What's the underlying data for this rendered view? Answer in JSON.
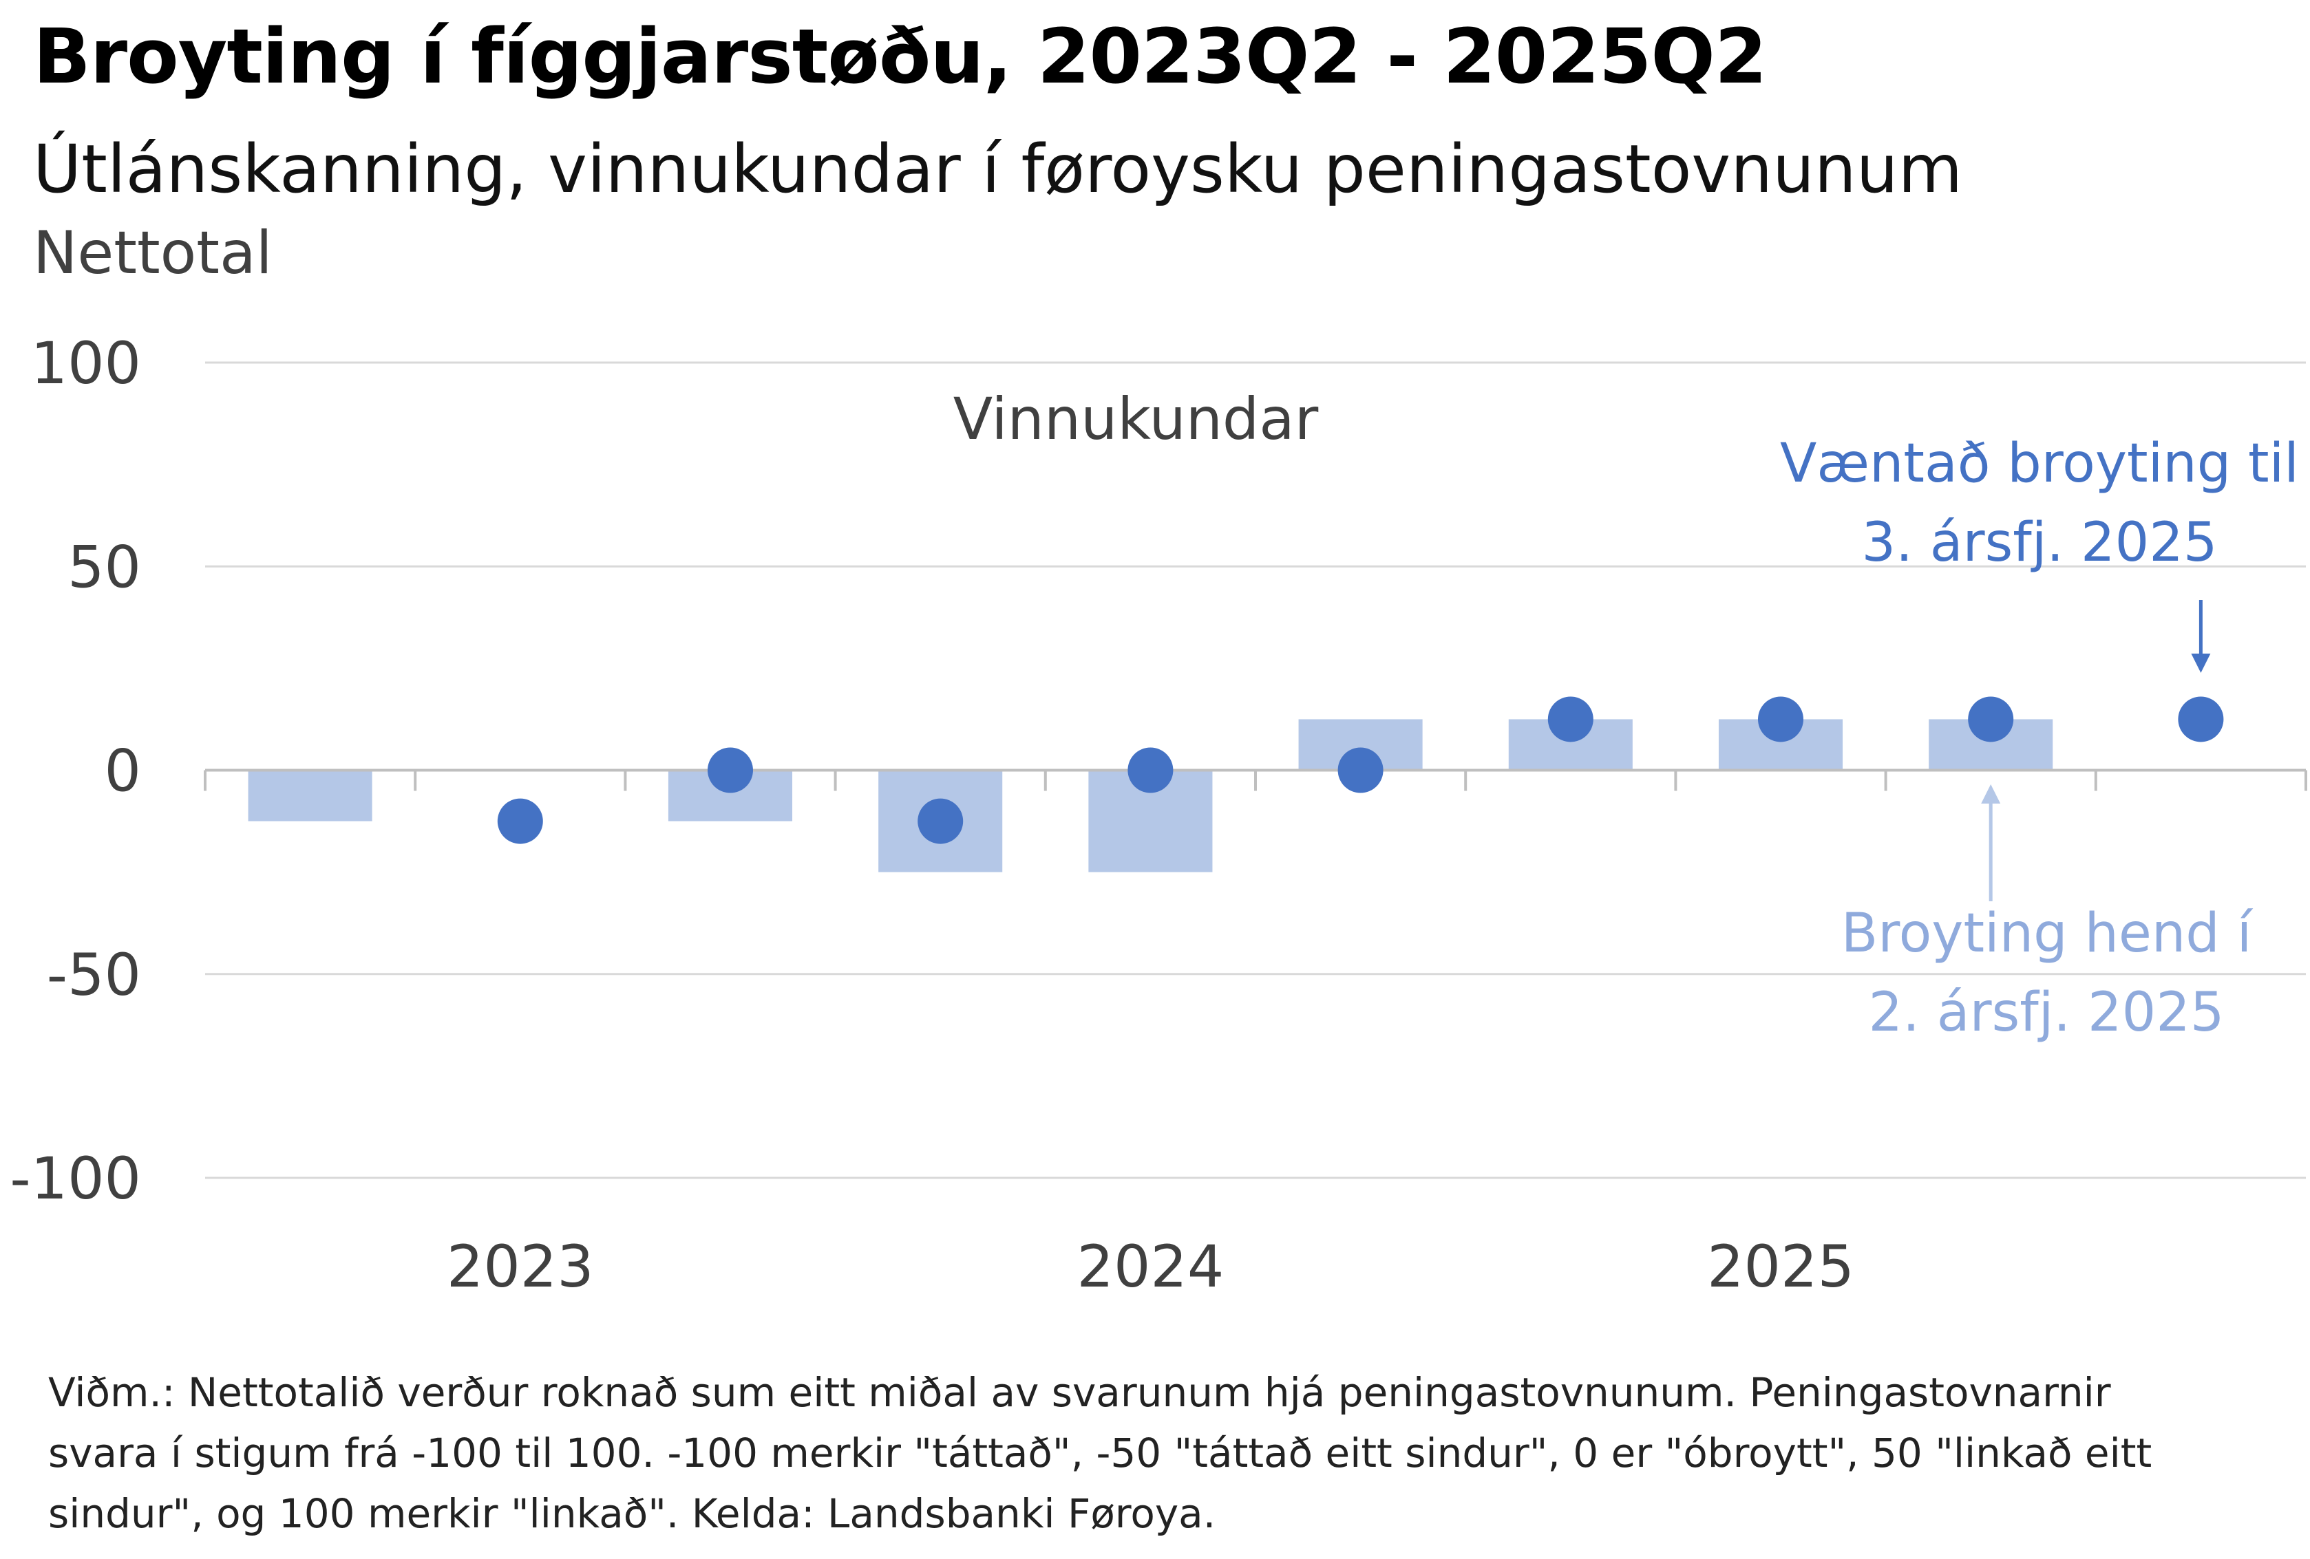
{
  "title": "Broyting í fíggjarstøðu, 2023Q2 - 2025Q2",
  "subtitle": "Útlánskanning, vinnukundar í føroysku peningastovnunum",
  "unit_label": "Nettotal",
  "colors": {
    "bars": "#b4c7e7",
    "dots": "#4472c4",
    "grid": "#d9d9d9",
    "axis": "#bfbfbf",
    "text": "#404040"
  },
  "chart_data": {
    "type": "bar",
    "title": "Vinnukundar",
    "ylim": [
      -100,
      100
    ],
    "y_ticks": [
      "100",
      "50",
      "0",
      "-50",
      "-100"
    ],
    "grid": true,
    "categories": [
      "2023Q2",
      "2023Q3",
      "2023Q4",
      "2024Q1",
      "2024Q2",
      "2024Q3",
      "2024Q4",
      "2025Q1",
      "2025Q2",
      "2025Q3"
    ],
    "x_tick_labels": [
      "2023",
      "2024",
      "2025"
    ],
    "series": [
      {
        "name": "Broyting hend",
        "style": "bar",
        "values": [
          -12.5,
          null,
          -12.5,
          -25,
          -25,
          12.5,
          12.5,
          12.5,
          12.5,
          null
        ]
      },
      {
        "name": "Væntað broyting",
        "style": "dot",
        "values": [
          null,
          -12.5,
          0,
          -12.5,
          0,
          0,
          12.5,
          12.5,
          12.5,
          12.5
        ]
      }
    ],
    "annotations": [
      {
        "lines": [
          "Væntað broyting til",
          "3. ársfj. 2025"
        ],
        "target": "2025Q3",
        "series": "Væntað broyting"
      },
      {
        "lines": [
          "Broyting hend í",
          "2. ársfj. 2025"
        ],
        "target": "2025Q2",
        "series": "Broyting hend"
      }
    ]
  },
  "note_lines": [
    "Viðm.: Nettotalið verður roknað sum eitt miðal av svarunum hjá peningastovnunum. Peningastovnarnir",
    "svara í stigum frá -100 til 100. -100 merkir \"táttað\", -50 \"táttað eitt sindur\", 0 er \"óbroytt\", 50 \"linkað eitt",
    "sindur\", og 100 merkir \"linkað\". Kelda: Landsbanki Føroya."
  ]
}
